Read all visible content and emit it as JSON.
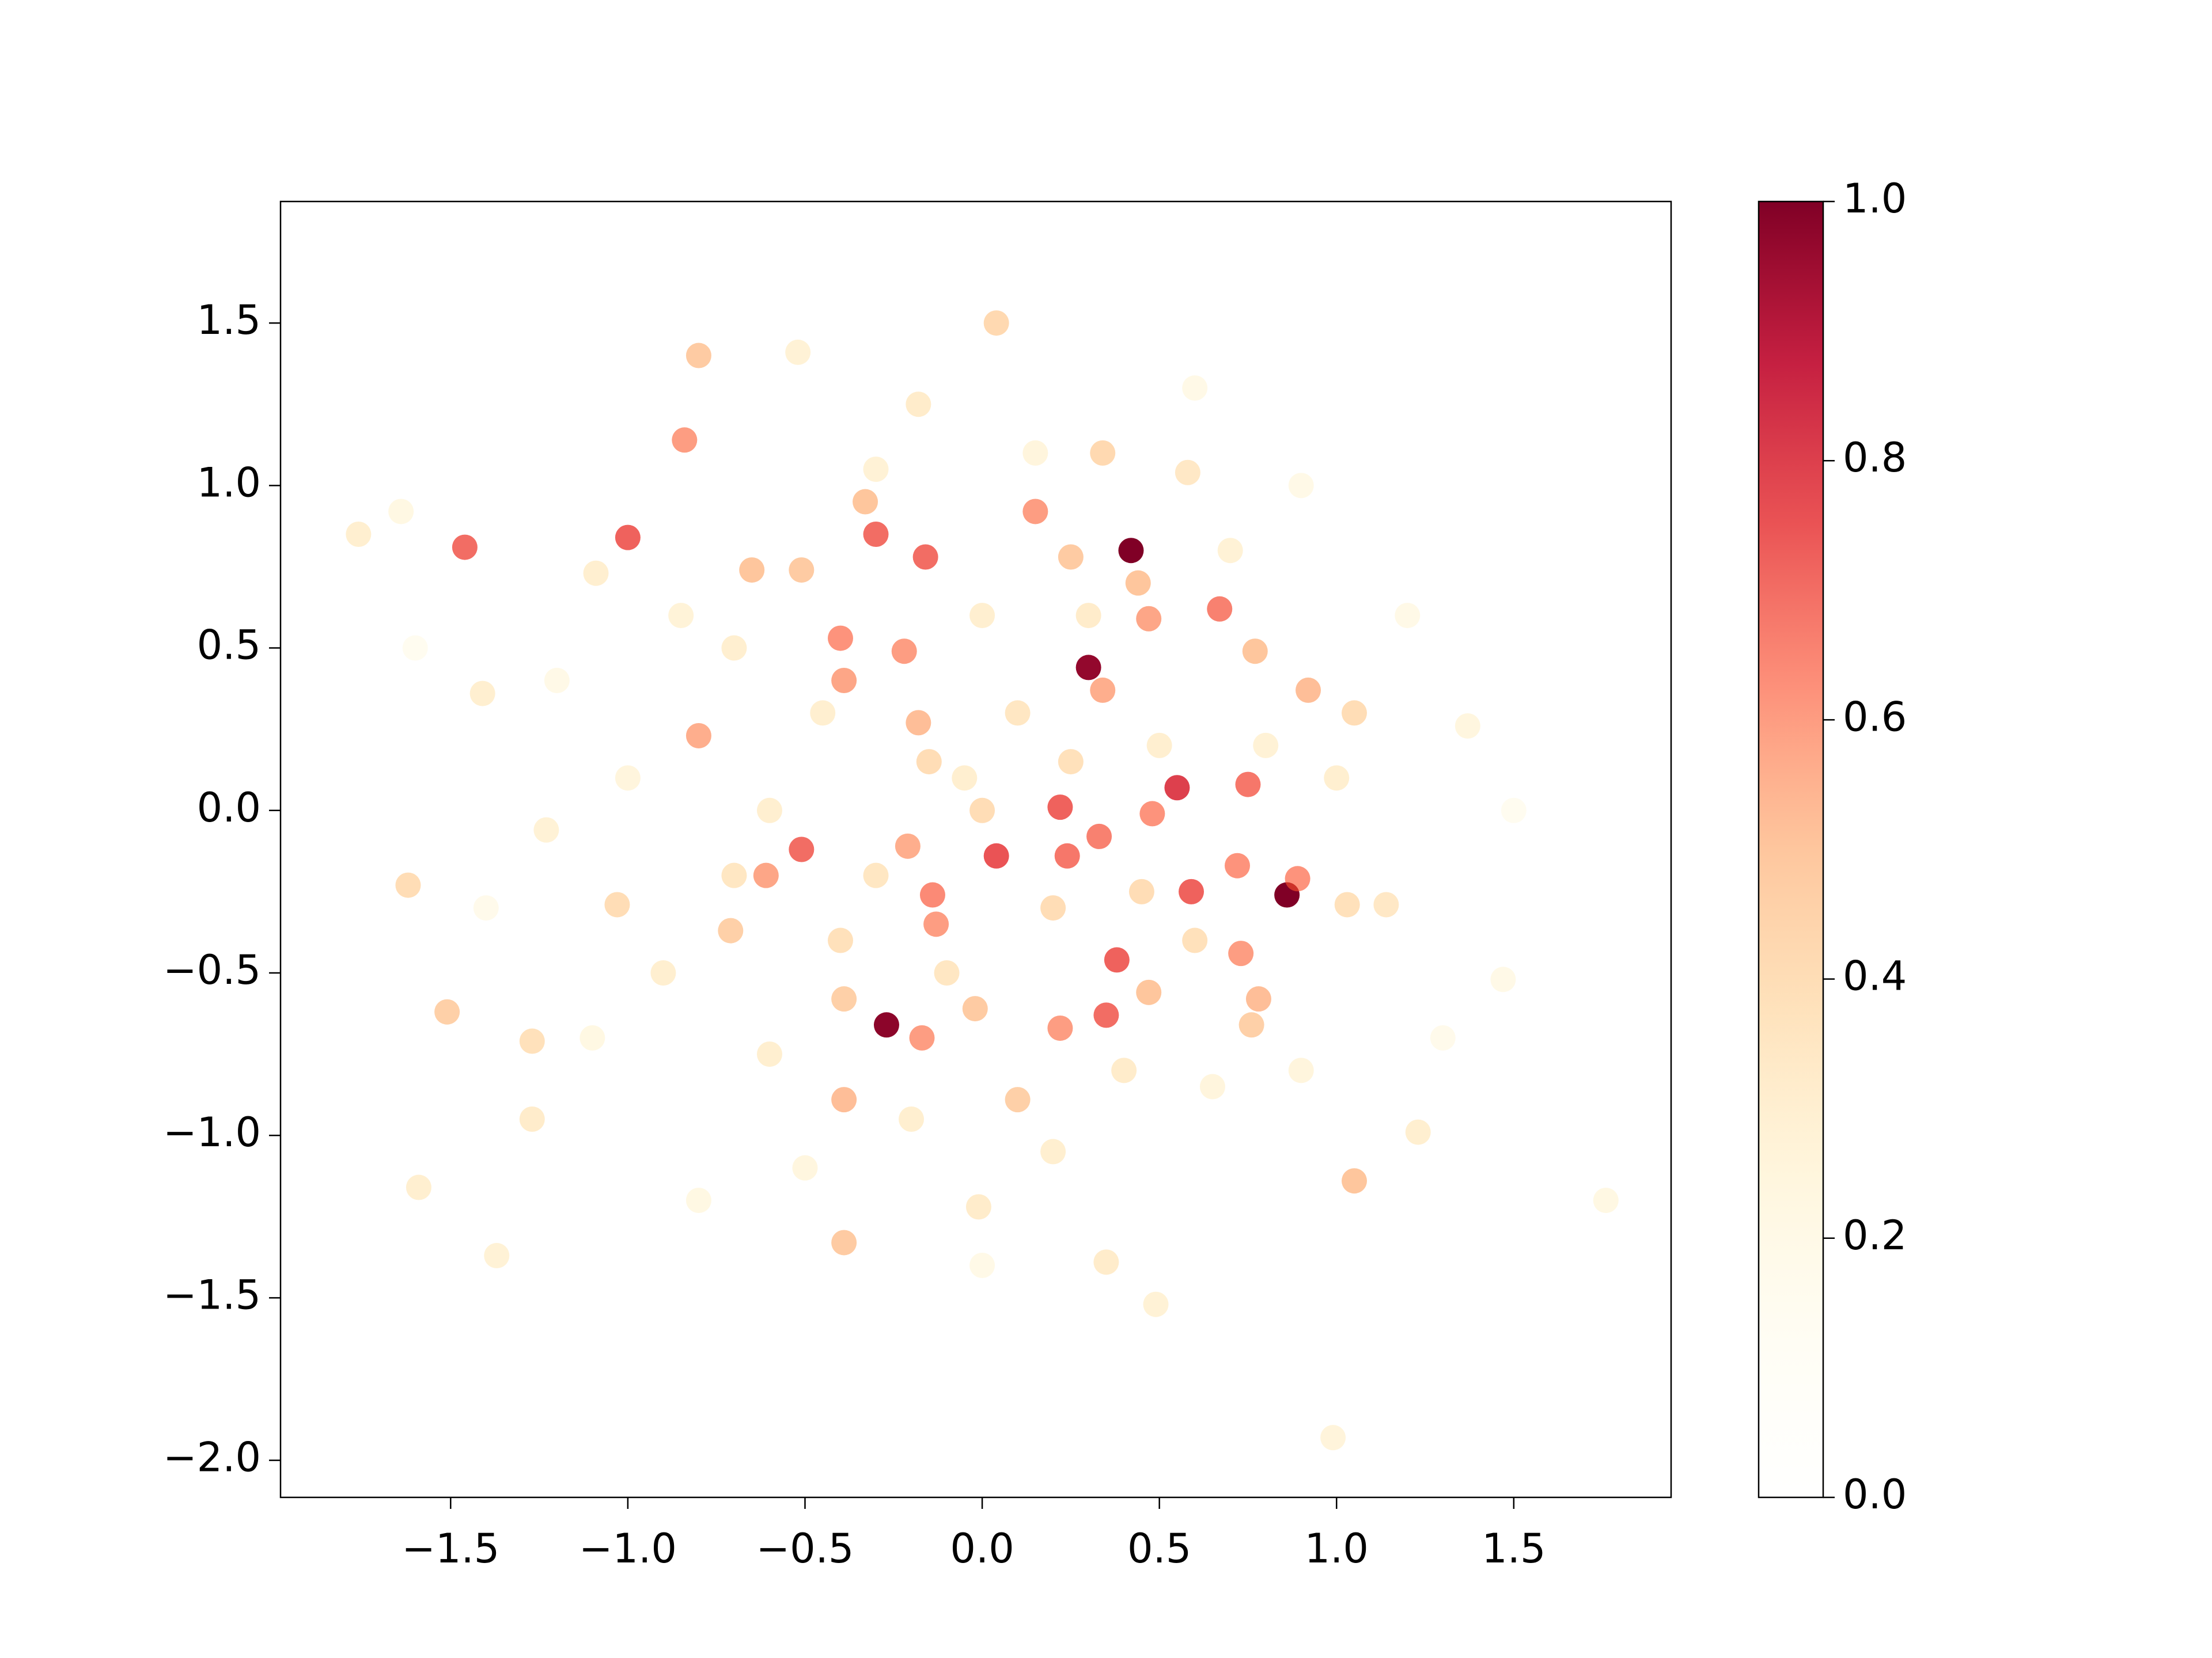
{
  "chart_data": {
    "type": "scatter",
    "x": [
      0.42,
      0.3,
      0.86,
      -0.27,
      0.55,
      -1.0,
      -1.46,
      -0.3,
      0.59,
      0.04,
      0.22,
      0.38,
      0.35,
      -0.51,
      -0.16,
      0.75,
      0.67,
      -0.84,
      -0.22,
      -0.4,
      -0.39,
      0.15,
      0.47,
      0.34,
      0.48,
      0.33,
      0.24,
      -0.14,
      -0.21,
      -0.13,
      0.72,
      0.73,
      0.22,
      -0.17,
      0.89,
      -0.61,
      -0.8,
      -0.8,
      0.04,
      0.34,
      -0.33,
      0.44,
      0.92,
      0.77,
      1.05,
      -0.39,
      -0.39,
      -1.51,
      -1.62,
      -1.27,
      -0.65,
      -0.51,
      0.25,
      -0.18,
      -0.39,
      -0.02,
      0.1,
      0.47,
      0.78,
      0.76,
      -1.03,
      -0.71,
      1.03,
      -1.76,
      -1.64,
      -1.09,
      -1.41,
      -1.23,
      -1.27,
      -1.59,
      -1.37,
      -0.01,
      0.35,
      0.49,
      0.99,
      1.23,
      1.14,
      1.76,
      1.47,
      1.37,
      0.58,
      -0.18,
      -0.52,
      1.05,
      0.1,
      -0.05,
      0.2,
      -0.3,
      0.5,
      -0.6,
      0.0,
      -0.1,
      0.6,
      -0.45,
      0.3,
      -0.7,
      0.8,
      -0.9,
      0.4,
      -0.6,
      0.65,
      -0.2,
      -1.0,
      1.0,
      -0.85,
      0.15,
      -0.3,
      0.7,
      -1.1,
      0.9,
      -0.5,
      0.2,
      1.2,
      -1.2,
      0.0,
      -0.15,
      0.25,
      -0.4,
      0.45,
      -0.7,
      1.3,
      -1.4,
      0.0,
      0.6,
      -0.8,
      1.5,
      -1.6,
      0.9
    ],
    "y": [
      0.8,
      0.44,
      -0.26,
      -0.66,
      0.07,
      0.84,
      0.81,
      0.85,
      -0.25,
      -0.14,
      0.01,
      -0.46,
      -0.63,
      -0.12,
      0.78,
      0.08,
      0.62,
      1.14,
      0.49,
      0.53,
      0.4,
      0.92,
      0.59,
      0.37,
      -0.01,
      -0.08,
      -0.14,
      -0.26,
      -0.11,
      -0.35,
      -0.17,
      -0.44,
      -0.67,
      -0.7,
      -0.21,
      -0.2,
      0.23,
      1.4,
      1.5,
      1.1,
      0.95,
      0.7,
      0.37,
      0.49,
      -1.14,
      -1.33,
      -0.89,
      -0.62,
      -0.23,
      -0.71,
      0.74,
      0.74,
      0.78,
      0.27,
      -0.58,
      -0.61,
      -0.89,
      -0.56,
      -0.58,
      -0.66,
      -0.29,
      -0.37,
      -0.29,
      0.85,
      0.92,
      0.73,
      0.36,
      -0.06,
      -0.95,
      -1.16,
      -1.37,
      -1.22,
      -1.39,
      -1.52,
      -1.93,
      -0.99,
      -0.29,
      -1.2,
      -0.52,
      0.26,
      1.04,
      1.25,
      1.41,
      0.3,
      0.3,
      0.1,
      -0.3,
      -0.2,
      0.2,
      0.0,
      0.6,
      -0.5,
      -0.4,
      0.3,
      0.6,
      0.5,
      0.2,
      -0.5,
      -0.8,
      -0.75,
      -0.85,
      -0.95,
      0.1,
      0.1,
      0.6,
      1.1,
      1.05,
      0.8,
      -0.7,
      -0.8,
      -1.1,
      -1.05,
      0.6,
      0.4,
      0.0,
      0.15,
      0.15,
      -0.4,
      -0.25,
      -0.2,
      -0.7,
      -0.3,
      -1.4,
      1.3,
      -1.2,
      0.0,
      0.5,
      1.0
    ],
    "c": [
      1.0,
      0.97,
      1.0,
      0.98,
      0.8,
      0.72,
      0.7,
      0.7,
      0.72,
      0.75,
      0.72,
      0.72,
      0.7,
      0.7,
      0.7,
      0.68,
      0.66,
      0.6,
      0.6,
      0.62,
      0.58,
      0.6,
      0.58,
      0.56,
      0.62,
      0.66,
      0.68,
      0.64,
      0.56,
      0.6,
      0.62,
      0.6,
      0.6,
      0.6,
      0.62,
      0.58,
      0.56,
      0.48,
      0.42,
      0.42,
      0.5,
      0.5,
      0.52,
      0.5,
      0.5,
      0.48,
      0.52,
      0.46,
      0.4,
      0.38,
      0.5,
      0.48,
      0.48,
      0.52,
      0.46,
      0.48,
      0.46,
      0.5,
      0.52,
      0.46,
      0.4,
      0.46,
      0.38,
      0.3,
      0.22,
      0.3,
      0.3,
      0.28,
      0.32,
      0.3,
      0.28,
      0.32,
      0.32,
      0.28,
      0.26,
      0.3,
      0.34,
      0.22,
      0.2,
      0.24,
      0.34,
      0.32,
      0.28,
      0.4,
      0.35,
      0.3,
      0.4,
      0.35,
      0.3,
      0.3,
      0.3,
      0.35,
      0.38,
      0.3,
      0.32,
      0.3,
      0.28,
      0.3,
      0.32,
      0.3,
      0.25,
      0.3,
      0.25,
      0.3,
      0.27,
      0.25,
      0.28,
      0.28,
      0.22,
      0.25,
      0.24,
      0.3,
      0.2,
      0.2,
      0.4,
      0.4,
      0.38,
      0.38,
      0.4,
      0.35,
      0.18,
      0.18,
      0.2,
      0.2,
      0.22,
      0.15,
      0.15,
      0.2
    ],
    "xlim": [
      -1.98,
      1.944
    ],
    "ylim": [
      -2.114,
      1.874
    ],
    "xticks": [
      {
        "value": -1.5,
        "label": "−1.5"
      },
      {
        "value": -1.0,
        "label": "−1.0"
      },
      {
        "value": -0.5,
        "label": "−0.5"
      },
      {
        "value": 0,
        "label": "0.0"
      },
      0.5,
      {
        "value": 1,
        "label": "1.0"
      },
      1.5
    ],
    "yticks": [
      {
        "value": -2.0,
        "label": "−2.0"
      },
      {
        "value": -1.5,
        "label": "−1.5"
      },
      {
        "value": -1.0,
        "label": "−1.0"
      },
      {
        "value": -0.5,
        "label": "−0.5"
      },
      {
        "value": 0,
        "label": "0.0"
      },
      0.5,
      {
        "value": 1,
        "label": "1.0"
      },
      1.5
    ],
    "clim": [
      0,
      1
    ],
    "cticks": [
      {
        "value": 0,
        "label": "0.0"
      },
      0.2,
      0.4,
      0.6,
      0.8,
      {
        "value": 1,
        "label": "1.0"
      }
    ],
    "colormap": [
      "#ffffcc",
      "#ffeda0",
      "#fed976",
      "#feb24c",
      "#fd8d3c",
      "#fc4e2a",
      "#e31a1c",
      "#bd0026",
      "#800026"
    ]
  }
}
